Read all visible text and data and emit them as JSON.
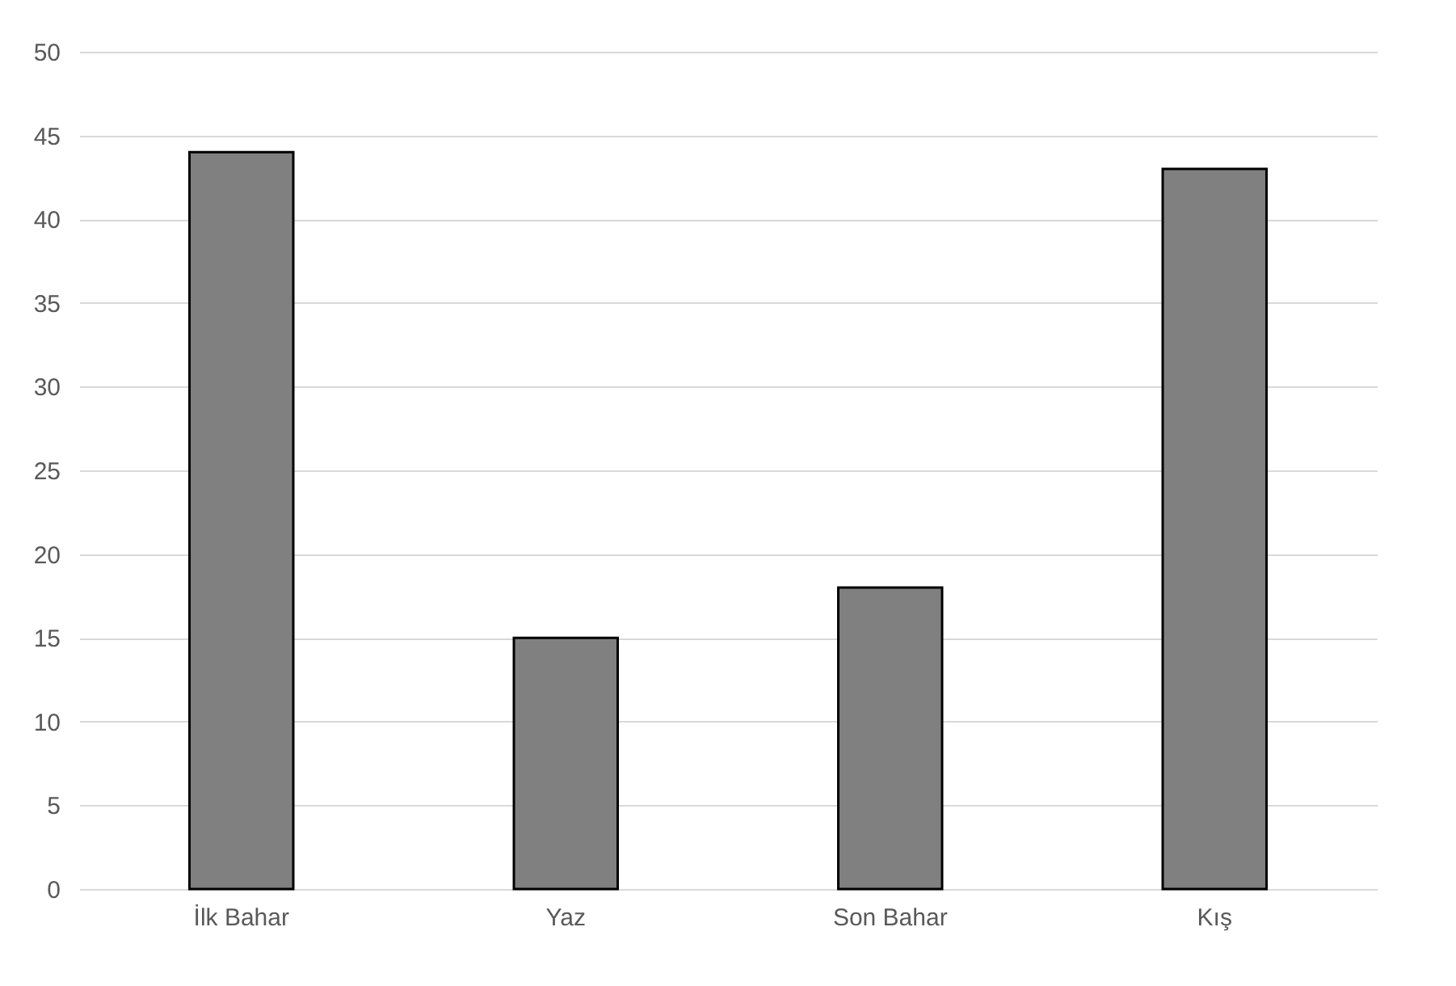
{
  "chart_data": {
    "type": "bar",
    "categories": [
      "İlk Bahar",
      "Yaz",
      "Son Bahar",
      "Kış"
    ],
    "values": [
      44,
      15,
      18,
      43
    ],
    "color": "#808080",
    "ylim": [
      0,
      50
    ],
    "yticks": [
      0,
      5,
      10,
      15,
      20,
      25,
      30,
      35,
      40,
      45,
      50
    ],
    "grid": "y"
  }
}
